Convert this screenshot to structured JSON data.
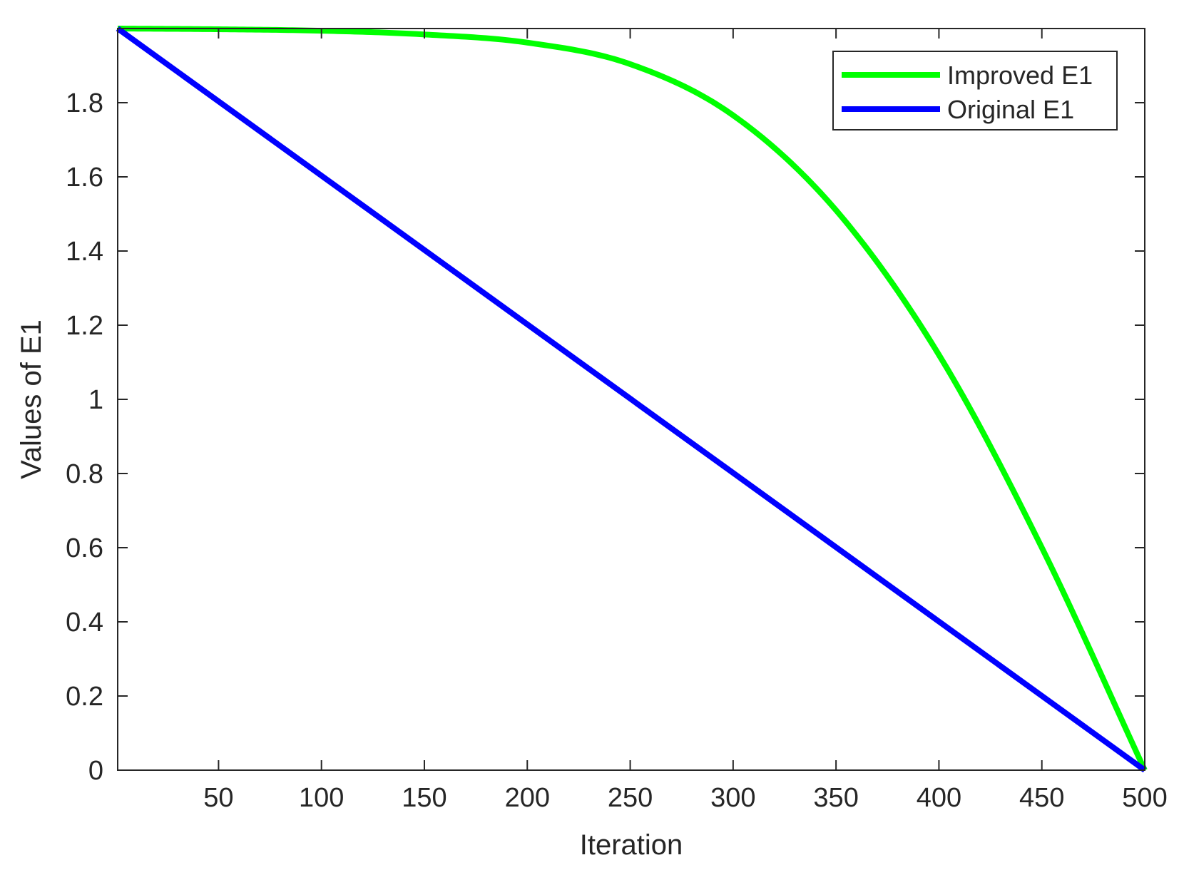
{
  "chart_data": {
    "type": "line",
    "title": "",
    "xlabel": "Iteration",
    "ylabel": "Values of E1",
    "xlim": [
      1,
      500
    ],
    "ylim": [
      0,
      2
    ],
    "xticks": [
      50,
      100,
      150,
      200,
      250,
      300,
      350,
      400,
      450,
      500
    ],
    "yticks": [
      0,
      0.2,
      0.4,
      0.6,
      0.8,
      1,
      1.2,
      1.4,
      1.6,
      1.8
    ],
    "grid": false,
    "legend_position": "top-right",
    "series": [
      {
        "name": "Improved E1",
        "color": "#00ff00",
        "x": [
          1,
          50,
          100,
          150,
          200,
          250,
          300,
          350,
          400,
          450,
          500
        ],
        "y": [
          2.0,
          1.998,
          1.994,
          1.984,
          1.962,
          1.904,
          1.766,
          1.51,
          1.12,
          0.6,
          0.0
        ]
      },
      {
        "name": "Original E1",
        "color": "#0000ff",
        "x": [
          1,
          500
        ],
        "y": [
          2.0,
          0.0
        ]
      }
    ]
  }
}
